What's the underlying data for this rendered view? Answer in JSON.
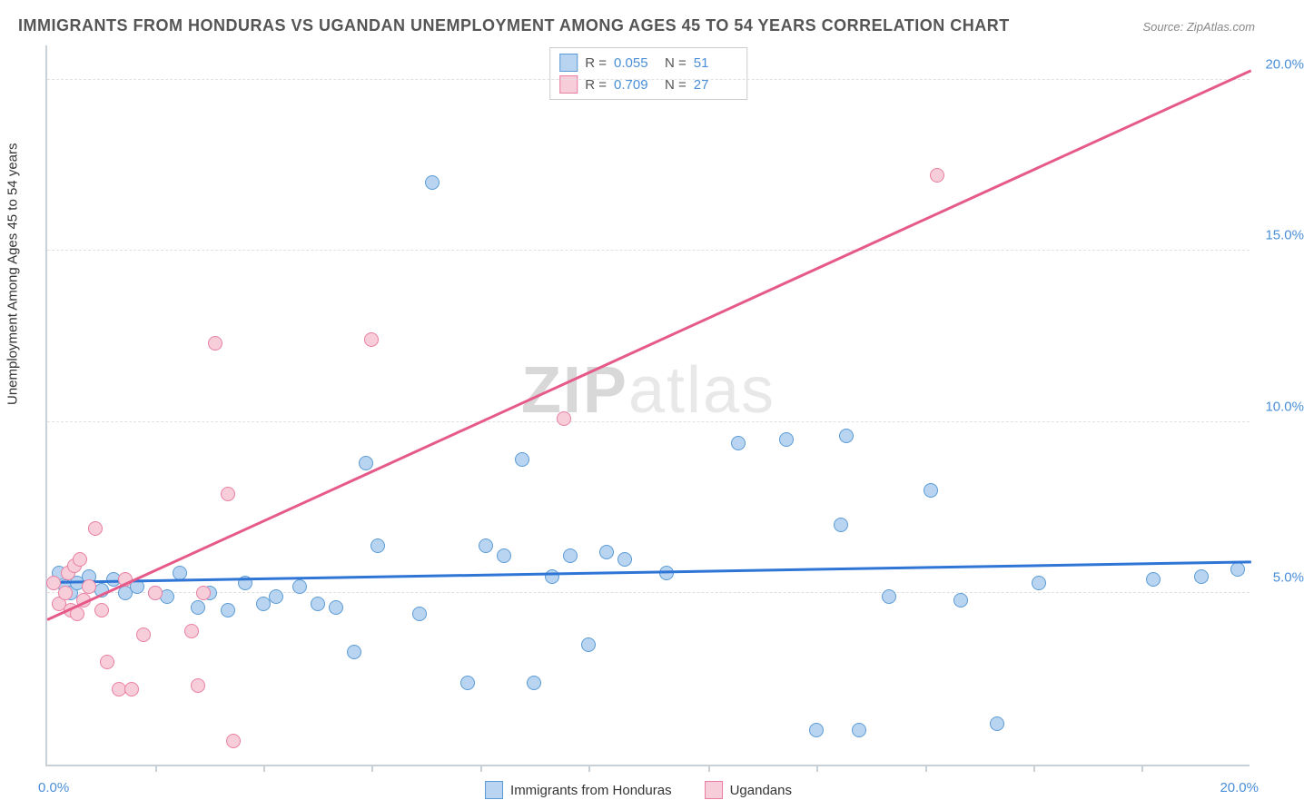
{
  "title": "IMMIGRANTS FROM HONDURAS VS UGANDAN UNEMPLOYMENT AMONG AGES 45 TO 54 YEARS CORRELATION CHART",
  "source": "Source: ZipAtlas.com",
  "y_axis_label": "Unemployment Among Ages 45 to 54 years",
  "watermark_bold": "ZIP",
  "watermark_light": "atlas",
  "x_axis": {
    "min": 0,
    "max": 20,
    "min_label": "0.0%",
    "max_label": "20.0%",
    "tick_positions_pct": [
      9,
      18,
      27,
      36,
      45,
      55,
      64,
      73,
      82,
      91
    ]
  },
  "y_axis": {
    "min": 0,
    "max": 21,
    "ticks": [
      {
        "value": 5,
        "label": "5.0%"
      },
      {
        "value": 10,
        "label": "10.0%"
      },
      {
        "value": 15,
        "label": "15.0%"
      },
      {
        "value": 20,
        "label": "20.0%"
      }
    ]
  },
  "series": [
    {
      "key": "honduras",
      "name": "Immigrants from Honduras",
      "fill": "#b8d4f0",
      "stroke": "#5b9bd5",
      "line_color": "#2e75d6",
      "line_width": 2.5,
      "marker_size": 16,
      "r_value": "0.055",
      "n_value": "51",
      "trend": {
        "x1": 0,
        "y1": 5.4,
        "x2": 20,
        "y2": 6.0
      },
      "points": [
        [
          0.2,
          5.6
        ],
        [
          0.3,
          5.2
        ],
        [
          0.4,
          5.0
        ],
        [
          0.5,
          5.3
        ],
        [
          0.7,
          5.5
        ],
        [
          0.9,
          5.1
        ],
        [
          1.1,
          5.4
        ],
        [
          1.3,
          5.0
        ],
        [
          1.5,
          5.2
        ],
        [
          1.8,
          5.0
        ],
        [
          2.0,
          4.9
        ],
        [
          2.2,
          5.6
        ],
        [
          2.5,
          4.6
        ],
        [
          2.7,
          5.0
        ],
        [
          3.0,
          4.5
        ],
        [
          3.3,
          5.3
        ],
        [
          3.6,
          4.7
        ],
        [
          3.8,
          4.9
        ],
        [
          4.2,
          5.2
        ],
        [
          4.5,
          4.7
        ],
        [
          4.8,
          4.6
        ],
        [
          5.1,
          3.3
        ],
        [
          5.3,
          8.8
        ],
        [
          5.5,
          6.4
        ],
        [
          6.2,
          4.4
        ],
        [
          6.4,
          17.0
        ],
        [
          7.0,
          2.4
        ],
        [
          7.3,
          6.4
        ],
        [
          7.6,
          6.1
        ],
        [
          7.9,
          8.9
        ],
        [
          8.1,
          2.4
        ],
        [
          8.4,
          5.5
        ],
        [
          8.7,
          6.1
        ],
        [
          9.0,
          3.5
        ],
        [
          9.3,
          6.2
        ],
        [
          9.6,
          6.0
        ],
        [
          10.3,
          5.6
        ],
        [
          11.5,
          9.4
        ],
        [
          12.3,
          9.5
        ],
        [
          12.8,
          1.0
        ],
        [
          13.2,
          7.0
        ],
        [
          13.3,
          9.6
        ],
        [
          13.5,
          1.0
        ],
        [
          14.0,
          4.9
        ],
        [
          14.7,
          8.0
        ],
        [
          15.2,
          4.8
        ],
        [
          15.8,
          1.2
        ],
        [
          16.5,
          5.3
        ],
        [
          18.4,
          5.4
        ],
        [
          19.2,
          5.5
        ],
        [
          19.8,
          5.7
        ]
      ]
    },
    {
      "key": "ugandans",
      "name": "Ugandans",
      "fill": "#f7cdd9",
      "stroke": "#e97fa3",
      "line_color": "#e65a8a",
      "line_width": 2.5,
      "marker_size": 16,
      "r_value": "0.709",
      "n_value": "27",
      "trend": {
        "x1": 0,
        "y1": 4.3,
        "x2": 20,
        "y2": 20.3
      },
      "points": [
        [
          0.1,
          5.3
        ],
        [
          0.2,
          4.7
        ],
        [
          0.3,
          5.0
        ],
        [
          0.35,
          5.6
        ],
        [
          0.4,
          4.5
        ],
        [
          0.45,
          5.8
        ],
        [
          0.5,
          4.4
        ],
        [
          0.55,
          6.0
        ],
        [
          0.6,
          4.8
        ],
        [
          0.7,
          5.2
        ],
        [
          0.8,
          6.9
        ],
        [
          0.9,
          4.5
        ],
        [
          1.0,
          3.0
        ],
        [
          1.2,
          2.2
        ],
        [
          1.3,
          5.4
        ],
        [
          1.4,
          2.2
        ],
        [
          1.6,
          3.8
        ],
        [
          1.8,
          5.0
        ],
        [
          2.4,
          3.9
        ],
        [
          2.5,
          2.3
        ],
        [
          2.6,
          5.0
        ],
        [
          2.8,
          12.3
        ],
        [
          3.0,
          7.9
        ],
        [
          3.1,
          0.7
        ],
        [
          5.4,
          12.4
        ],
        [
          8.6,
          10.1
        ],
        [
          14.8,
          17.2
        ]
      ]
    }
  ],
  "plot": {
    "background": "#ffffff",
    "grid_color": "#e0e0e0",
    "axis_color": "#c8d0d8"
  }
}
